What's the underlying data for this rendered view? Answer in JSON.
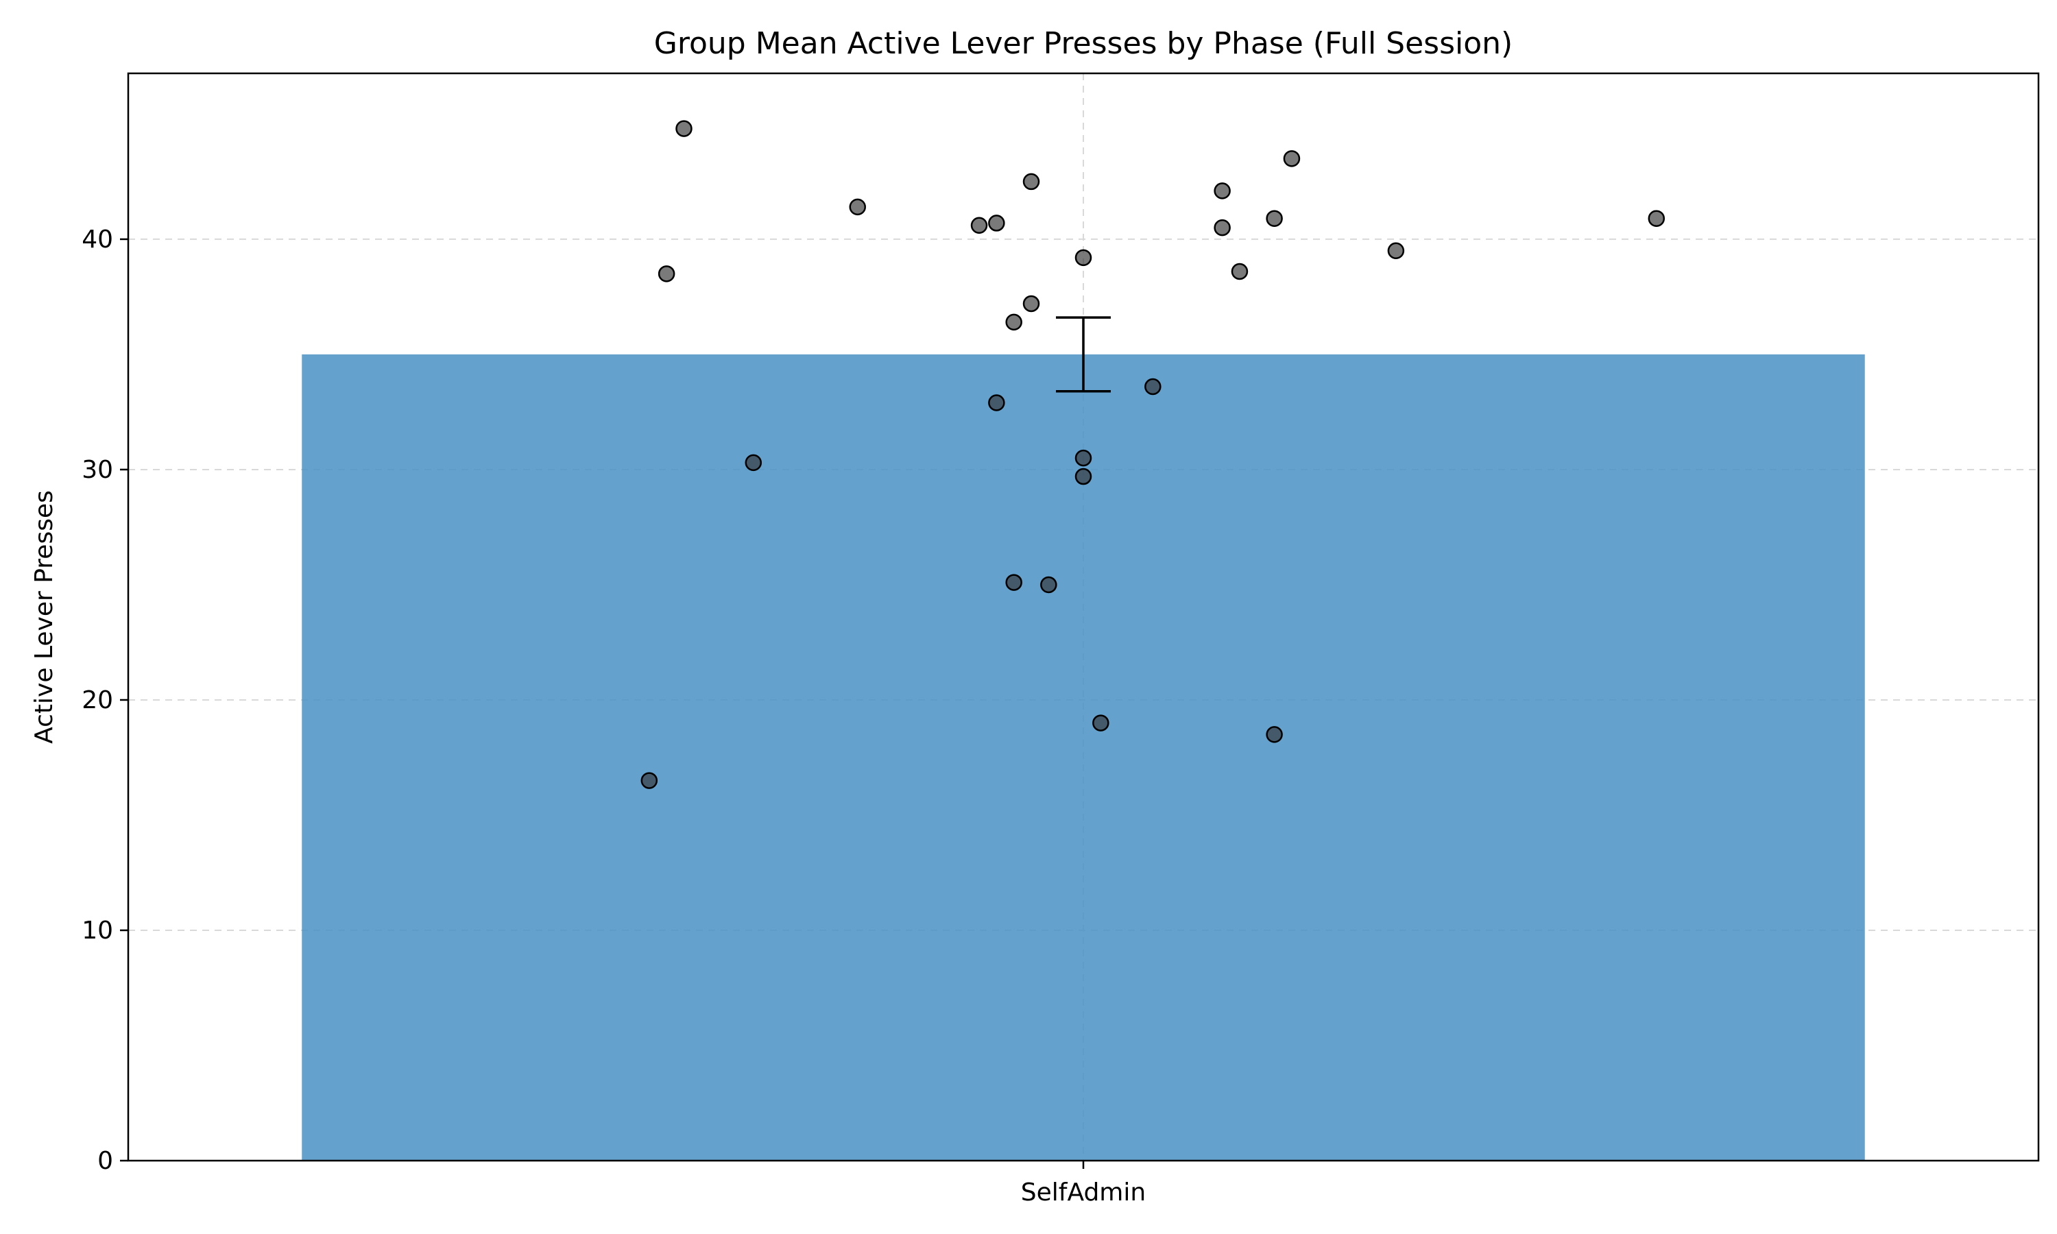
{
  "chart_data": {
    "type": "bar",
    "title": "Group Mean Active Lever Presses by Phase (Full Session)",
    "xlabel": "",
    "ylabel": "Active Lever Presses",
    "categories": [
      "SelfAdmin"
    ],
    "values": [
      35.0
    ],
    "error": [
      1.6
    ],
    "ylim": [
      0,
      47.2
    ],
    "yticks": [
      0,
      10,
      20,
      30,
      40
    ],
    "grid": true,
    "bar_color": "#4a90c4",
    "point_color": "#333333",
    "points": [
      {
        "x": -0.23,
        "y": 44.8
      },
      {
        "x": -0.03,
        "y": 42.5
      },
      {
        "x": 0.12,
        "y": 43.5
      },
      {
        "x": -0.13,
        "y": 41.4
      },
      {
        "x": 0.08,
        "y": 42.1
      },
      {
        "x": -0.06,
        "y": 40.6
      },
      {
        "x": -0.05,
        "y": 40.7
      },
      {
        "x": 0.08,
        "y": 40.5
      },
      {
        "x": 0.11,
        "y": 40.9
      },
      {
        "x": 0.33,
        "y": 40.9
      },
      {
        "x": 0.18,
        "y": 39.5
      },
      {
        "x": 0.0,
        "y": 39.2
      },
      {
        "x": -0.24,
        "y": 38.5
      },
      {
        "x": 0.09,
        "y": 38.6
      },
      {
        "x": -0.03,
        "y": 37.2
      },
      {
        "x": -0.04,
        "y": 36.4
      },
      {
        "x": 0.04,
        "y": 33.6
      },
      {
        "x": -0.05,
        "y": 32.9
      },
      {
        "x": -0.19,
        "y": 30.3
      },
      {
        "x": 0.0,
        "y": 30.5
      },
      {
        "x": 0.0,
        "y": 29.7
      },
      {
        "x": -0.04,
        "y": 25.1
      },
      {
        "x": -0.02,
        "y": 25.0
      },
      {
        "x": 0.01,
        "y": 19.0
      },
      {
        "x": 0.11,
        "y": 18.5
      },
      {
        "x": -0.25,
        "y": 16.5
      }
    ]
  }
}
